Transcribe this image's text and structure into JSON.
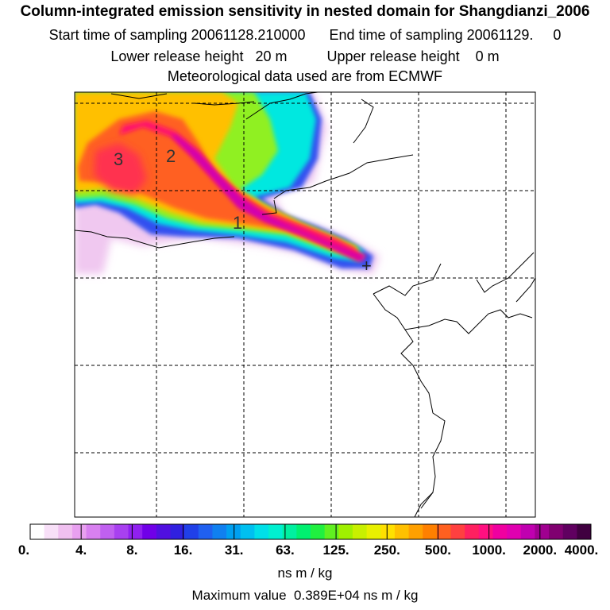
{
  "header": {
    "title": "Column-integrated emission sensitivity in nested domain for Shangdianzi_2006",
    "start_label": "Start time of sampling",
    "start_value": "20061128.210000",
    "end_label": "End time of sampling",
    "end_value": "20061129.     0",
    "lower_label": "Lower release height",
    "lower_value": "20 m",
    "upper_label": "Upper release height",
    "upper_value": "0 m",
    "met_text": "Meteorological data used are from ECMWF"
  },
  "map": {
    "age_labels": [
      "3",
      "2",
      "1"
    ],
    "receptor_symbol": "+"
  },
  "legend": {
    "tick_labels": [
      "0.",
      "4.",
      "8.",
      "16.",
      "31.",
      "63.",
      "125.",
      "250.",
      "500.",
      "1000.",
      "2000.",
      "4000."
    ],
    "colors": [
      "#ffffff",
      "#f8e0f8",
      "#f0c0f0",
      "#e8a0f0",
      "#d880f0",
      "#c060f0",
      "#a840f0",
      "#9020f0",
      "#7000e8",
      "#5010e0",
      "#3020e0",
      "#2040e8",
      "#2060f0",
      "#1080f0",
      "#00a0f0",
      "#00c0f0",
      "#00e0e8",
      "#00f0d0",
      "#00f0a0",
      "#00f070",
      "#20f040",
      "#60f020",
      "#a0f000",
      "#c8f000",
      "#e8f000",
      "#ffe000",
      "#ffc000",
      "#ffa000",
      "#ff8000",
      "#ff6020",
      "#ff4040",
      "#ff2060",
      "#ff1080",
      "#f000a0",
      "#e000b0",
      "#c000b0",
      "#a00090",
      "#800070",
      "#600060",
      "#400040"
    ],
    "units": "ns m / kg",
    "max_text": "Maximum value  0.389E+04 ns m / kg"
  }
}
